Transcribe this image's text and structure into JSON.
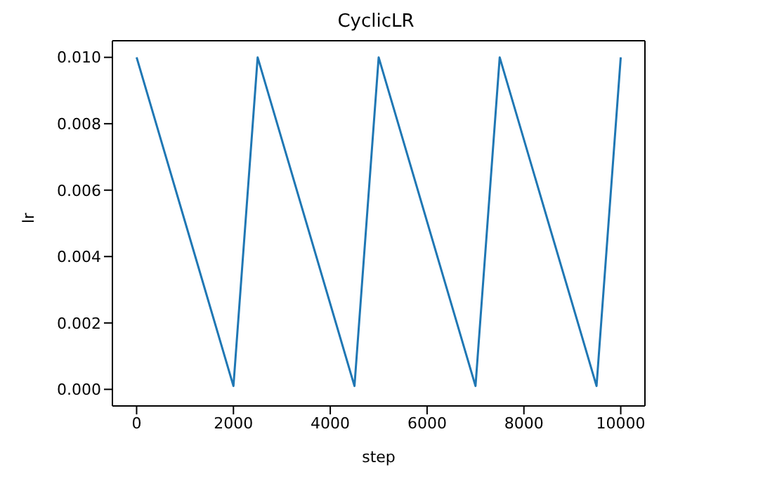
{
  "chart_data": {
    "type": "line",
    "title": "CyclicLR",
    "xlabel": "step",
    "ylabel": "lr",
    "x": [
      0,
      2000,
      2500,
      4500,
      5000,
      7000,
      7500,
      9500,
      10000
    ],
    "series": [
      {
        "color": "#1f77b4",
        "values": [
          0.01,
          0.0001,
          0.01,
          0.0001,
          0.01,
          0.0001,
          0.01,
          0.0001,
          0.01
        ]
      }
    ],
    "xlim": [
      -500,
      10500
    ],
    "xticks": [
      0,
      2000,
      4000,
      6000,
      8000,
      10000
    ],
    "ylim": [
      -0.0005,
      0.0105
    ],
    "yticks": [
      {
        "value": 0,
        "label": "0.000"
      },
      {
        "value": 0.002,
        "label": "0.002"
      },
      {
        "value": 0.004,
        "label": "0.004"
      },
      {
        "value": 0.006,
        "label": "0.006"
      },
      {
        "value": 0.008,
        "label": "0.008"
      },
      {
        "value": 0.01,
        "label": "0.010"
      }
    ],
    "grid": false,
    "legend": false,
    "marker": "none",
    "line_style": "solid"
  }
}
